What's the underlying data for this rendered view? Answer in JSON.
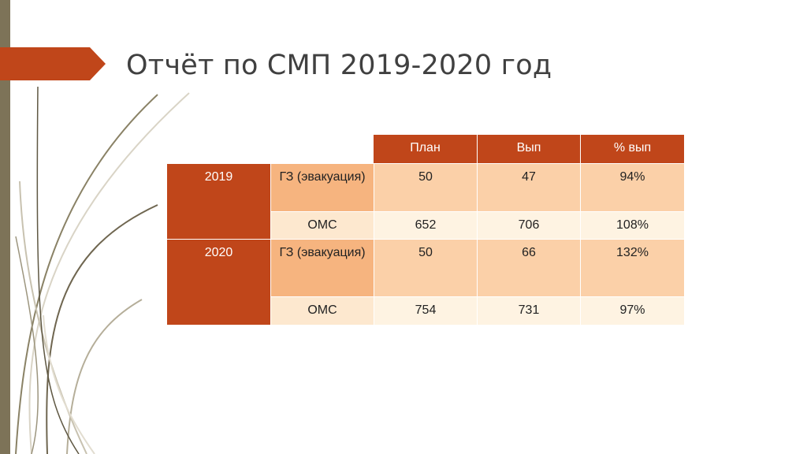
{
  "slide": {
    "title": "Отчёт по СМП 2019-2020 год"
  },
  "table": {
    "headers": [
      "План",
      "Вып",
      "% вып"
    ],
    "groups": [
      {
        "year": "2019",
        "rows": [
          {
            "label": "ГЗ (эвакуация)",
            "plan": "50",
            "done": "47",
            "percent": "94%"
          },
          {
            "label": "ОМС",
            "plan": "652",
            "done": "706",
            "percent": "108%"
          }
        ]
      },
      {
        "year": "2020",
        "rows": [
          {
            "label": "ГЗ (эвакуация)",
            "plan": "50",
            "done": "66",
            "percent": "132%"
          },
          {
            "label": "ОМС",
            "plan": "754",
            "done": "731",
            "percent": "97%"
          }
        ]
      }
    ]
  },
  "colors": {
    "accent": "#c0461a",
    "side_bar": "#7d7358",
    "row_dark": "#fbd0a8",
    "row_light": "#fef3e2"
  }
}
